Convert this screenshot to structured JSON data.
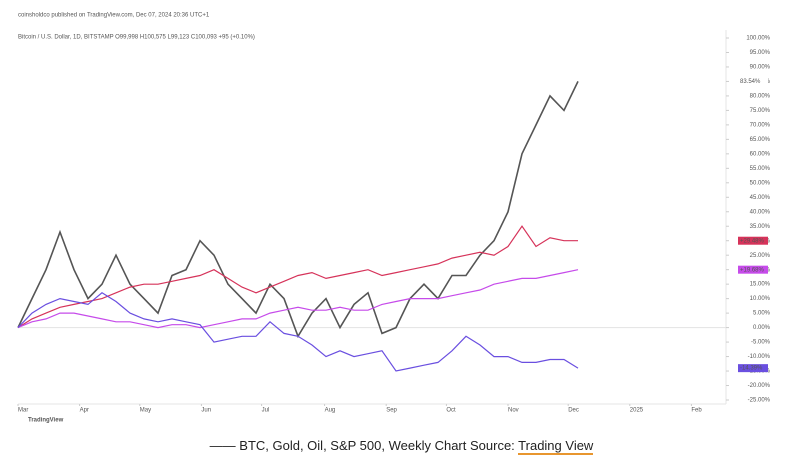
{
  "chart_data": {
    "type": "line",
    "publisher": "coinsholdco published on TradingView.com, Dec 07, 2024 20:36 UTC+1",
    "title": "Bitcoin / U.S. Dollar, 1D, BITSTAMP  O99,998  H100,575  L99,123  C100,093  +95 (+0.10%)",
    "x": [
      0,
      1,
      2,
      3,
      4,
      5,
      6,
      7,
      8,
      9,
      10,
      11,
      12,
      13,
      14,
      15,
      16,
      17,
      18,
      19,
      20,
      21,
      22,
      23,
      24,
      25,
      26,
      27,
      28,
      29,
      30,
      31,
      32,
      33,
      34,
      35,
      36,
      37,
      38,
      39,
      40
    ],
    "xlim": [
      0,
      50
    ],
    "xticks": [
      {
        "value": 0,
        "label": "Mar"
      },
      {
        "value": 4.4,
        "label": "Apr"
      },
      {
        "value": 8.7,
        "label": "May"
      },
      {
        "value": 13.1,
        "label": "Jun"
      },
      {
        "value": 17.4,
        "label": "Jul"
      },
      {
        "value": 21.9,
        "label": "Aug"
      },
      {
        "value": 26.3,
        "label": "Sep"
      },
      {
        "value": 30.6,
        "label": "Oct"
      },
      {
        "value": 35,
        "label": "Nov"
      },
      {
        "value": 39.3,
        "label": "Dec"
      },
      {
        "value": 43.7,
        "label": "2025"
      },
      {
        "value": 48.1,
        "label": "Feb"
      }
    ],
    "ylim": [
      -25,
      100
    ],
    "yticks": [
      {
        "value": -25,
        "label": "-25.00%"
      },
      {
        "value": -20,
        "label": "-20.00%"
      },
      {
        "value": -15,
        "label": "-15.00%"
      },
      {
        "value": -10,
        "label": "-10.00%"
      },
      {
        "value": -5,
        "label": "-5.00%"
      },
      {
        "value": 0,
        "label": "0.00%"
      },
      {
        "value": 5,
        "label": "5.00%"
      },
      {
        "value": 10,
        "label": "10.00%"
      },
      {
        "value": 15,
        "label": "15.00%"
      },
      {
        "value": 20,
        "label": "20.00%"
      },
      {
        "value": 25,
        "label": "25.00%"
      },
      {
        "value": 30,
        "label": "30.00%"
      },
      {
        "value": 35,
        "label": "35.00%"
      },
      {
        "value": 40,
        "label": "40.00%"
      },
      {
        "value": 45,
        "label": "45.00%"
      },
      {
        "value": 50,
        "label": "50.00%"
      },
      {
        "value": 55,
        "label": "55.00%"
      },
      {
        "value": 60,
        "label": "60.00%"
      },
      {
        "value": 65,
        "label": "65.00%"
      },
      {
        "value": 70,
        "label": "70.00%"
      },
      {
        "value": 75,
        "label": "75.00%"
      },
      {
        "value": 80,
        "label": "80.00%"
      },
      {
        "value": 85,
        "label": "85.00%"
      },
      {
        "value": 90,
        "label": "90.00%"
      },
      {
        "value": 95,
        "label": "95.00%"
      },
      {
        "value": 100,
        "label": "100.00%"
      }
    ],
    "series": [
      {
        "color": "#555555",
        "end_label": "83.54%",
        "values": [
          0,
          10,
          20,
          33,
          20,
          10,
          15,
          25,
          15,
          10,
          5,
          18,
          20,
          30,
          25,
          15,
          10,
          5,
          15,
          10,
          -3,
          5,
          10,
          0,
          8,
          12,
          -2,
          0,
          10,
          15,
          10,
          18,
          18,
          25,
          30,
          40,
          60,
          70,
          80,
          75,
          85
        ]
      },
      {
        "color": "#d6335a",
        "end_label": "+29.48%",
        "values": [
          0,
          3,
          5,
          7,
          8,
          9,
          10,
          12,
          14,
          15,
          15,
          16,
          17,
          18,
          20,
          17,
          14,
          12,
          14,
          16,
          18,
          19,
          17,
          18,
          19,
          20,
          18,
          19,
          20,
          21,
          22,
          24,
          25,
          26,
          25,
          28,
          35,
          28,
          31,
          30,
          30
        ]
      },
      {
        "color": "#c64bea",
        "end_label": "+19.68%",
        "values": [
          0,
          2,
          3,
          5,
          5,
          4,
          3,
          2,
          2,
          1,
          0,
          1,
          1,
          0,
          1,
          2,
          3,
          3,
          5,
          6,
          7,
          6,
          6,
          7,
          6,
          6,
          8,
          9,
          10,
          10,
          10,
          11,
          12,
          13,
          15,
          16,
          17,
          17,
          18,
          19,
          20
        ]
      },
      {
        "color": "#6a4fe0",
        "end_label": "-14.39%",
        "values": [
          0,
          5,
          8,
          10,
          9,
          8,
          12,
          9,
          5,
          3,
          2,
          3,
          2,
          1,
          -5,
          -4,
          -3,
          -3,
          2,
          -2,
          -3,
          -6,
          -10,
          -8,
          -10,
          -9,
          -8,
          -15,
          -14,
          -13,
          -12,
          -8,
          -3,
          -6,
          -10,
          -10,
          -12,
          -12,
          -11,
          -11,
          -14
        ]
      }
    ],
    "footer_logo": "TradingView",
    "caption": "—— BTC, Gold, Oil, S&P 500,  Weekly Chart Source: ",
    "caption_link": "Trading View"
  }
}
